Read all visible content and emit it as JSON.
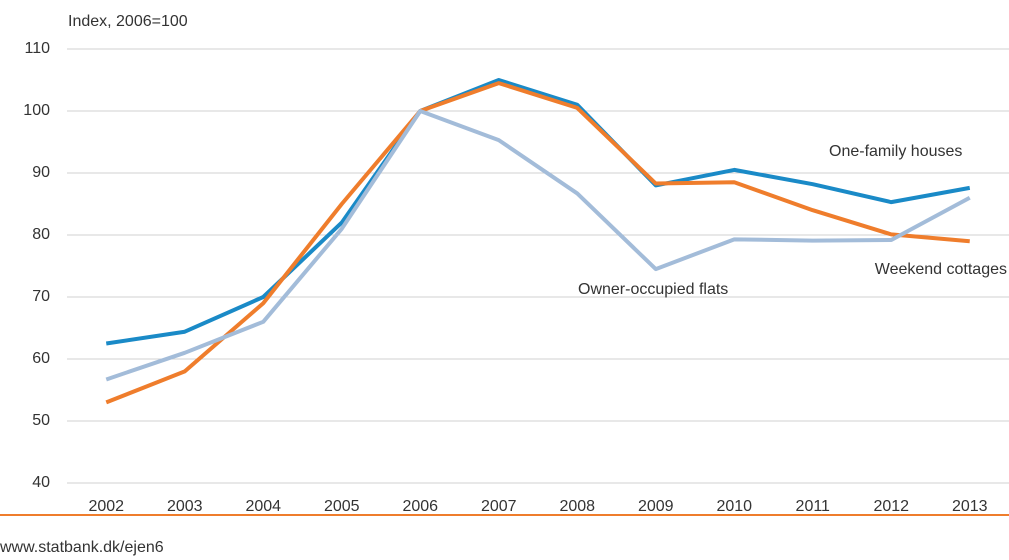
{
  "chart_data": {
    "type": "line",
    "y_axis_label": "Index, 2006=100",
    "categories": [
      "2002",
      "2003",
      "2004",
      "2005",
      "2006",
      "2007",
      "2008",
      "2009",
      "2010",
      "2011",
      "2012",
      "2013"
    ],
    "series": [
      {
        "name": "One-family houses",
        "color": "#1a8ac7",
        "values": [
          62.5,
          64.4,
          70,
          82,
          100,
          105,
          101,
          88,
          90.5,
          88.2,
          85.3,
          87.6
        ]
      },
      {
        "name": "Weekend cottages",
        "color": "#ef7d2c",
        "values": [
          53,
          58,
          69,
          85,
          100,
          104.5,
          100.5,
          88.3,
          88.5,
          84,
          80.1,
          79
        ]
      },
      {
        "name": "Owner-occupied flats",
        "color": "#a3bcd9",
        "values": [
          56.7,
          61,
          66,
          81,
          100,
          95.3,
          86.7,
          74.5,
          79.3,
          79.1,
          79.2,
          86
        ]
      }
    ],
    "ylim": [
      40,
      110
    ],
    "yticks": [
      40,
      50,
      60,
      70,
      80,
      90,
      100,
      110
    ],
    "grid": true,
    "source": "www.statbank.dk/ejen6"
  }
}
